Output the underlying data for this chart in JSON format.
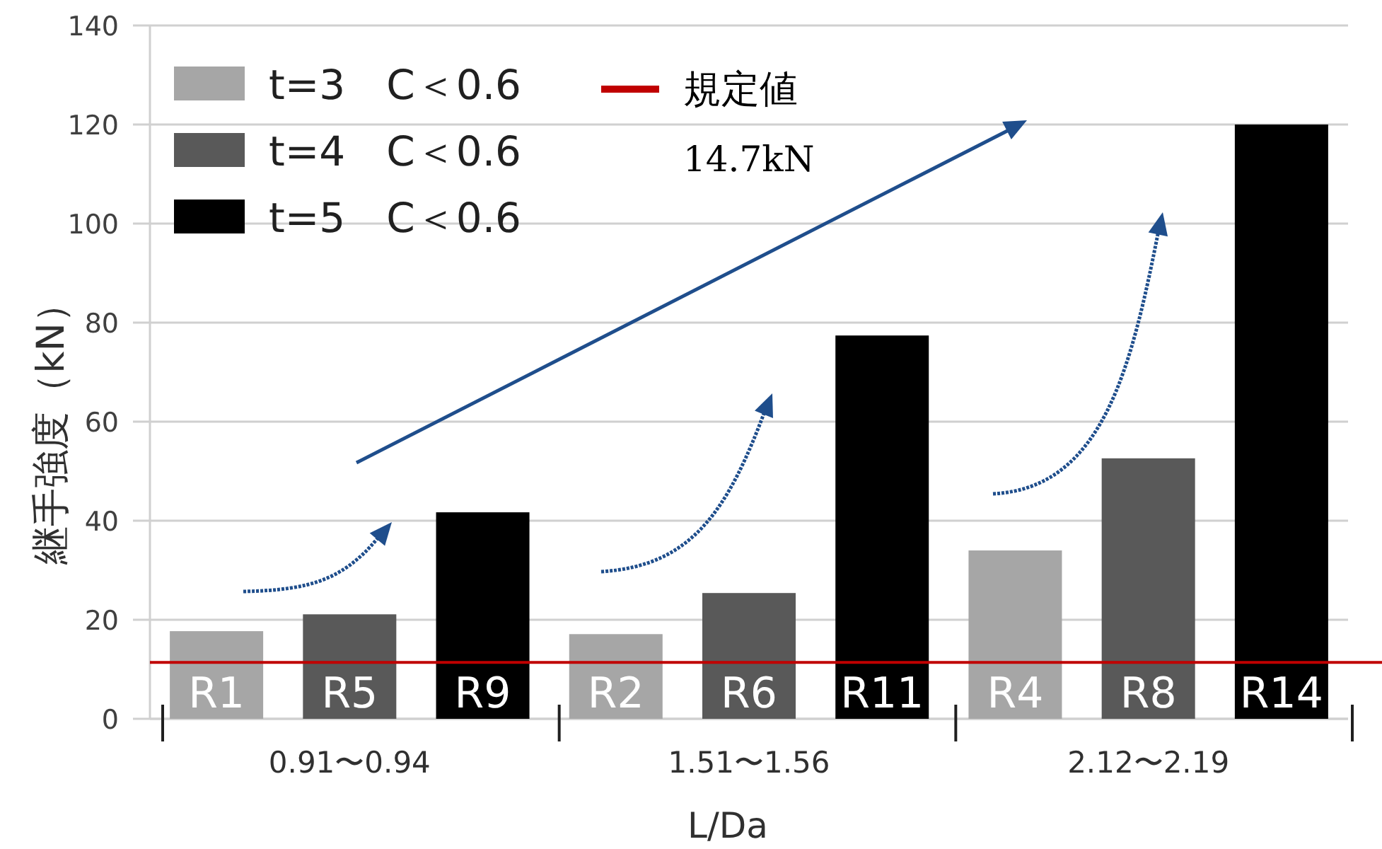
{
  "chart_data": {
    "type": "bar",
    "ylabel": "継手強度（kN）",
    "xlabel": "L/Da",
    "categories": [
      "0.91〜0.94",
      "1.51〜1.56",
      "2.12〜2.19"
    ],
    "series": [
      {
        "name": "t=3　C＜0.6",
        "color": "#a6a6a6",
        "values": [
          17.7,
          17.1,
          34.0
        ],
        "value_labels": [
          "R1",
          "R2",
          "R4"
        ]
      },
      {
        "name": "t=4　C＜0.6",
        "color": "#595959",
        "values": [
          21.1,
          25.4,
          52.6
        ],
        "value_labels": [
          "R5",
          "R6",
          "R8"
        ]
      },
      {
        "name": "t=5　C＜0.6",
        "color": "#000000",
        "values": [
          41.7,
          77.4,
          120.0
        ],
        "value_labels": [
          "R9",
          "R11",
          "R14"
        ]
      }
    ],
    "ylim": [
      0,
      140
    ],
    "yticks": [
      0,
      20,
      40,
      60,
      80,
      100,
      120,
      140
    ],
    "grid": "y",
    "legend": "top left",
    "ref_lines": [
      {
        "axis": "y",
        "value": 11.4,
        "label": "規定値",
        "color": "#c00000"
      }
    ],
    "annotations": [
      "14.7kN"
    ]
  }
}
